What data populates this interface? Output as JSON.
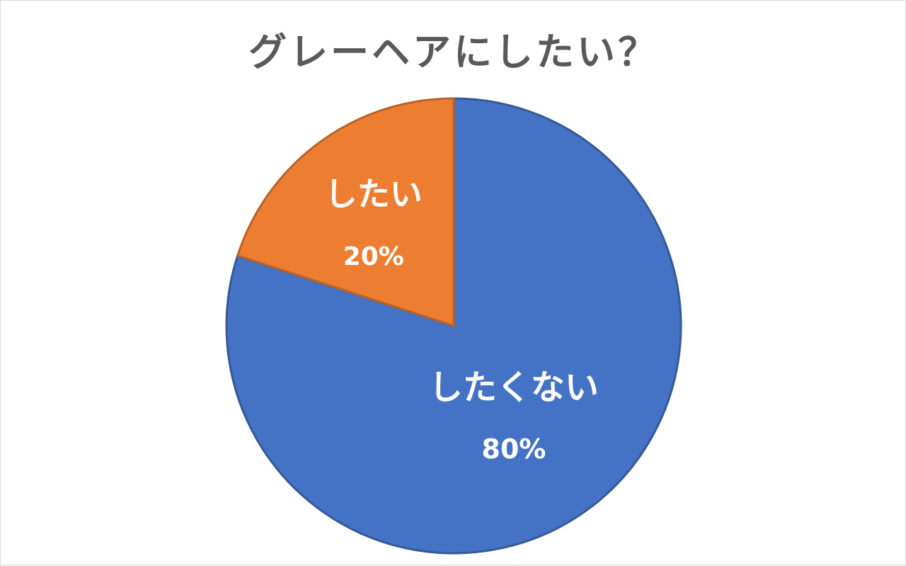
{
  "chart_data": {
    "type": "pie",
    "title": "グレーヘアにしたい？",
    "categories": [
      "したくない",
      "したい"
    ],
    "values": [
      80,
      20
    ],
    "value_labels": [
      "80%",
      "20%"
    ],
    "colors": [
      "#4472C4",
      "#ED7D31"
    ],
    "start_angle": "12 o'clock",
    "direction": "clockwise",
    "legend": "none"
  }
}
